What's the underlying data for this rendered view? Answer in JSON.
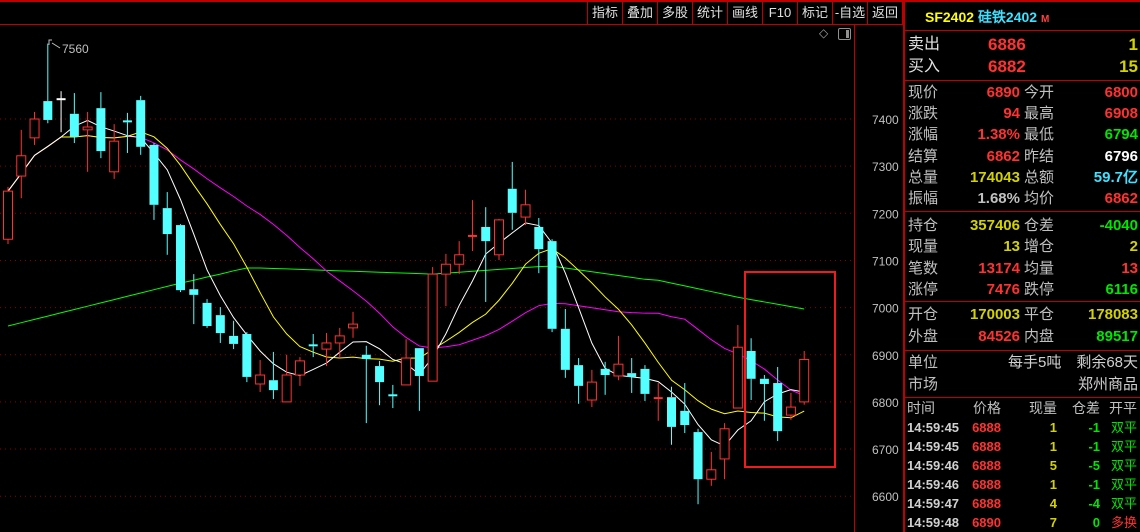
{
  "colors": {
    "red": "#ff3232",
    "green": "#00e600",
    "yellow": "#d2d200",
    "white": "#ffffff",
    "gray": "#c0c0c0",
    "cyan": "#40e0ff",
    "up": "#ff3232",
    "down": "#54ffff",
    "grid": "#8a0000",
    "accent": "#c00000"
  },
  "toolbar": {
    "buttons": [
      "指标",
      "叠加",
      "多股",
      "统计",
      "画线",
      "F10",
      "标记",
      "-自选",
      "返回"
    ]
  },
  "header": {
    "code": "SF2402",
    "name": "硅铁2402",
    "badge": "M"
  },
  "book": {
    "sell": {
      "label": "卖出",
      "price": "6886",
      "qty": "1"
    },
    "buy": {
      "label": "买入",
      "price": "6882",
      "qty": "15"
    }
  },
  "quote": {
    "rows": [
      {
        "l1": "现价",
        "v1": "6890",
        "c1": "red",
        "l2": "今开",
        "v2": "6800",
        "c2": "red"
      },
      {
        "l1": "涨跌",
        "v1": "94",
        "c1": "red",
        "l2": "最高",
        "v2": "6908",
        "c2": "red"
      },
      {
        "l1": "涨幅",
        "v1": "1.38%",
        "c1": "red",
        "l2": "最低",
        "v2": "6794",
        "c2": "green"
      },
      {
        "l1": "结算",
        "v1": "6862",
        "c1": "red",
        "l2": "昨结",
        "v2": "6796",
        "c2": "white"
      },
      {
        "l1": "总量",
        "v1": "174043",
        "c1": "yellow",
        "l2": "总额",
        "v2": "59.7亿",
        "c2": "cyan"
      },
      {
        "l1": "振幅",
        "v1": "1.68%",
        "c1": "gray",
        "l2": "均价",
        "v2": "6862",
        "c2": "red"
      },
      {
        "l1": "持仓",
        "v1": "357406",
        "c1": "yellow",
        "l2": "仓差",
        "v2": "-4040",
        "c2": "green"
      },
      {
        "l1": "现量",
        "v1": "13",
        "c1": "yellow",
        "l2": "增仓",
        "v2": "2",
        "c2": "yellow"
      },
      {
        "l1": "笔数",
        "v1": "13174",
        "c1": "red",
        "l2": "均量",
        "v2": "13",
        "c2": "red"
      },
      {
        "l1": "涨停",
        "v1": "7476",
        "c1": "red",
        "l2": "跌停",
        "v2": "6116",
        "c2": "green"
      },
      {
        "l1": "开仓",
        "v1": "170003",
        "c1": "yellow",
        "l2": "平仓",
        "v2": "178083",
        "c2": "yellow"
      },
      {
        "l1": "外盘",
        "v1": "84526",
        "c1": "red",
        "l2": "内盘",
        "v2": "89517",
        "c2": "green"
      }
    ],
    "unit": {
      "label": "单位",
      "value": "每手5吨",
      "extra": "剩余68天"
    },
    "market": {
      "label": "市场",
      "value": "郑州商品"
    }
  },
  "ticks": {
    "headers": [
      "时间",
      "价格",
      "现量",
      "仓差",
      "开平"
    ],
    "rows": [
      {
        "time": "14:59:45",
        "price": "6888",
        "vol": "1",
        "oi": "-1",
        "kind": "双平",
        "kc": "green"
      },
      {
        "time": "14:59:45",
        "price": "6888",
        "vol": "1",
        "oi": "-1",
        "kind": "双平",
        "kc": "green"
      },
      {
        "time": "14:59:46",
        "price": "6888",
        "vol": "5",
        "oi": "-5",
        "kind": "双平",
        "kc": "green"
      },
      {
        "time": "14:59:46",
        "price": "6888",
        "vol": "1",
        "oi": "-1",
        "kind": "双平",
        "kc": "green"
      },
      {
        "time": "14:59:47",
        "price": "6888",
        "vol": "4",
        "oi": "-4",
        "kind": "双平",
        "kc": "green"
      },
      {
        "time": "14:59:48",
        "price": "6890",
        "vol": "7",
        "oi": "0",
        "kind": "多换",
        "kc": "red"
      }
    ]
  },
  "chart_data": {
    "type": "candlestick",
    "ylim": [
      6560,
      7580
    ],
    "y_ticks": [
      "7400",
      "7300",
      "7200",
      "7100",
      "7000",
      "6900",
      "6800",
      "6700",
      "6600"
    ],
    "grid": true,
    "high_marker": "7560",
    "ohlc": [
      [
        7145,
        7256,
        7135,
        7247
      ],
      [
        7279,
        7377,
        7232,
        7322
      ],
      [
        7360,
        7415,
        7345,
        7400
      ],
      [
        7438,
        7560,
        7391,
        7398
      ],
      [
        7442,
        7459,
        7372,
        7442
      ],
      [
        7411,
        7455,
        7349,
        7362
      ],
      [
        7377,
        7415,
        7288,
        7383
      ],
      [
        7423,
        7457,
        7317,
        7332
      ],
      [
        7288,
        7389,
        7273,
        7353
      ],
      [
        7395,
        7413,
        7328,
        7393
      ],
      [
        7440,
        7449,
        7324,
        7341
      ],
      [
        7345,
        7349,
        7186,
        7218
      ],
      [
        7211,
        7245,
        7112,
        7156
      ],
      [
        7175,
        7177,
        7033,
        7037
      ],
      [
        7039,
        7071,
        6965,
        7027
      ],
      [
        7010,
        7018,
        6957,
        6961
      ],
      [
        6984,
        7001,
        6925,
        6946
      ],
      [
        6940,
        6972,
        6912,
        6923
      ],
      [
        6944,
        6948,
        6842,
        6853
      ],
      [
        6838,
        6889,
        6821,
        6857
      ],
      [
        6846,
        6906,
        6806,
        6825
      ],
      [
        6800,
        6900,
        6800,
        6857
      ],
      [
        6857,
        6895,
        6834,
        6887
      ],
      [
        6920,
        6944,
        6895,
        6918
      ],
      [
        6912,
        6946,
        6876,
        6925
      ],
      [
        6925,
        6957,
        6893,
        6940
      ],
      [
        6957,
        6991,
        6936,
        6965
      ],
      [
        6900,
        6919,
        6755,
        6891
      ],
      [
        6876,
        6887,
        6793,
        6842
      ],
      [
        6814,
        6836,
        6787,
        6812
      ],
      [
        6836,
        6933,
        6836,
        6893
      ],
      [
        6914,
        6914,
        6781,
        6855
      ],
      [
        6844,
        7086,
        6844,
        7071
      ],
      [
        7071,
        7114,
        7003,
        7092
      ],
      [
        7092,
        7141,
        7071,
        7112
      ],
      [
        7150,
        7228,
        7120,
        7152
      ],
      [
        7171,
        7213,
        7012,
        7141
      ],
      [
        7112,
        7188,
        7101,
        7186
      ],
      [
        7252,
        7309,
        7165,
        7201
      ],
      [
        7192,
        7250,
        7175,
        7218
      ],
      [
        7171,
        7190,
        7073,
        7124
      ],
      [
        7141,
        7145,
        6948,
        6955
      ],
      [
        6955,
        6997,
        6851,
        6868
      ],
      [
        6878,
        6893,
        6796,
        6834
      ],
      [
        6804,
        6868,
        6789,
        6842
      ],
      [
        6870,
        6885,
        6815,
        6857
      ],
      [
        6855,
        6940,
        6846,
        6880
      ],
      [
        6861,
        6893,
        6819,
        6853
      ],
      [
        6870,
        6878,
        6802,
        6817
      ],
      [
        6806,
        6840,
        6760,
        6808
      ],
      [
        6810,
        6832,
        6709,
        6747
      ],
      [
        6781,
        6840,
        6734,
        6751
      ],
      [
        6736,
        6743,
        6583,
        6636
      ],
      [
        6636,
        6694,
        6622,
        6656
      ],
      [
        6679,
        6755,
        6636,
        6743
      ],
      [
        6787,
        6963,
        6787,
        6916
      ],
      [
        6908,
        6935,
        6804,
        6849
      ],
      [
        6849,
        6857,
        6760,
        6838
      ],
      [
        6840,
        6874,
        6717,
        6738
      ],
      [
        6772,
        6819,
        6762,
        6789
      ],
      [
        6800,
        6908,
        6794,
        6890
      ]
    ],
    "ma_lines": [
      {
        "period": 5,
        "color": "#ffffff"
      },
      {
        "period": 10,
        "color": "#ffff00"
      },
      {
        "period": 20,
        "color": "#ff00ff"
      }
    ],
    "long_ma": {
      "color": "#00ff00",
      "values": [
        6961,
        6968,
        6975,
        6982,
        6989,
        6996,
        7003,
        7010,
        7017,
        7024,
        7031,
        7038,
        7045,
        7052,
        7058,
        7065,
        7071,
        7078,
        7084,
        7084,
        7083,
        7082,
        7081,
        7080,
        7079,
        7078,
        7077,
        7076,
        7075,
        7074,
        7073,
        7072,
        7071,
        7073,
        7075,
        7077,
        7079,
        7081,
        7083,
        7085,
        7087,
        7088,
        7084,
        7080,
        7076,
        7072,
        7068,
        7064,
        7060,
        7058,
        7052,
        7046,
        7040,
        7034,
        7028,
        7022,
        7017,
        7012,
        7007,
        7002,
        6997
      ]
    },
    "highlight": {
      "from_index": 56,
      "to_index": 60,
      "color": "#ee1c1c"
    }
  }
}
